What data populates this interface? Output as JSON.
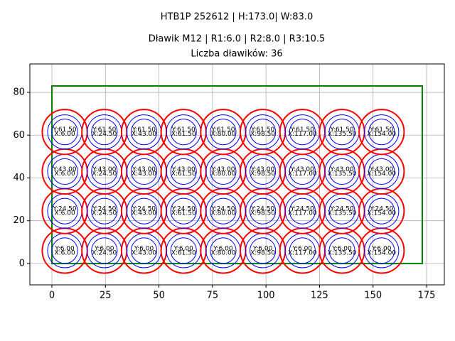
{
  "chart_data": {
    "type": "circles",
    "titles": [
      "HTB1P 252612 | H:173.0| W:83.0",
      "Dławik M12 | R1:6.0 | R2:8.0 | R3:10.5",
      "Liczba dławików: 36"
    ],
    "rect": {
      "x": [
        0,
        173
      ],
      "y": [
        0,
        83
      ],
      "color": "green"
    },
    "circles": [
      {
        "radius": 6,
        "color": "blue"
      },
      {
        "radius": 8,
        "color": "blue"
      },
      {
        "radius": 10.5,
        "color": "red"
      }
    ],
    "points": {
      "x": [
        6,
        24.5,
        43,
        61.5,
        80,
        98.5,
        117,
        135.5,
        154,
        6,
        24.5,
        43,
        61.5,
        80,
        98.5,
        117,
        135.5,
        154,
        6,
        24.5,
        43,
        61.5,
        80,
        98.5,
        117,
        135.5,
        154,
        6,
        24.5,
        43,
        61.5,
        80,
        98.5,
        117,
        135.5,
        154
      ],
      "y": [
        6,
        6,
        6,
        6,
        6,
        6,
        6,
        6,
        6,
        24.5,
        24.5,
        24.5,
        24.5,
        24.5,
        24.5,
        24.5,
        24.5,
        24.5,
        43,
        43,
        43,
        43,
        43,
        43,
        43,
        43,
        43,
        61.5,
        61.5,
        61.5,
        61.5,
        61.5,
        61.5,
        61.5,
        61.5,
        61.5
      ],
      "x_labels": [
        "X:6.00",
        "X:24.50",
        "X:43.00",
        "X:61.50",
        "X:80.00",
        "X:98.50",
        "X:117.00",
        "X:135.50",
        "X:154.00",
        "X:6.00",
        "X:24.50",
        "X:43.00",
        "X:61.50",
        "X:80.00",
        "X:98.50",
        "X:117.00",
        "X:135.50",
        "X:154.00",
        "X:6.00",
        "X:24.50",
        "X:43.00",
        "X:61.50",
        "X:80.00",
        "X:98.50",
        "X:117.00",
        "X:135.50",
        "X:154.00",
        "X:6.00",
        "X:24.50",
        "X:43.00",
        "X:61.50",
        "X:80.00",
        "X:98.50",
        "X:117.00",
        "X:135.50",
        "X:154.00"
      ],
      "y_labels": [
        "Y:6.00",
        "Y:6.00",
        "Y:6.00",
        "Y:6.00",
        "Y:6.00",
        "Y:6.00",
        "Y:6.00",
        "Y:6.00",
        "Y:6.00",
        "Y:24.50",
        "Y:24.50",
        "Y:24.50",
        "Y:24.50",
        "Y:24.50",
        "Y:24.50",
        "Y:24.50",
        "Y:24.50",
        "Y:24.50",
        "Y:43.00",
        "Y:43.00",
        "Y:43.00",
        "Y:43.00",
        "Y:43.00",
        "Y:43.00",
        "Y:43.00",
        "Y:43.00",
        "Y:43.00",
        "Y:61.50",
        "Y:61.50",
        "Y:61.50",
        "Y:61.50",
        "Y:61.50",
        "Y:61.50",
        "Y:61.50",
        "Y:61.50",
        "Y:61.50"
      ]
    },
    "xlim": [
      -10.3,
      183.3
    ],
    "ylim": [
      -10,
      93.3
    ],
    "xticks": [
      0,
      25,
      50,
      75,
      100,
      125,
      150,
      175
    ],
    "yticks": [
      0,
      20,
      40,
      60,
      80
    ],
    "grid": true
  }
}
